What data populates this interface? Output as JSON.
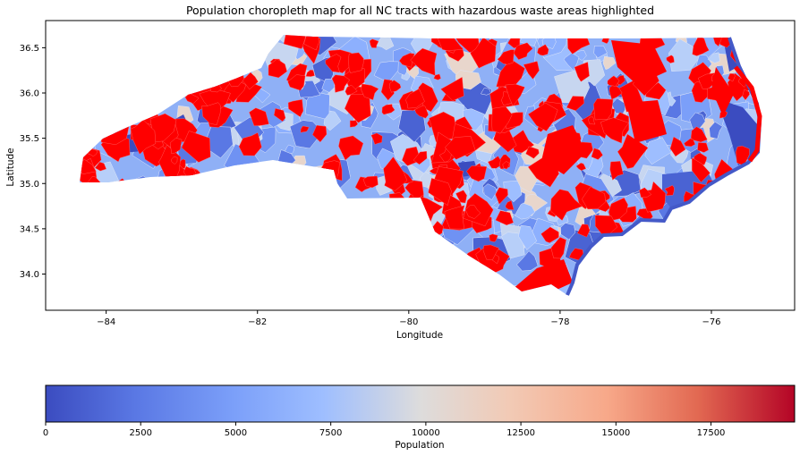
{
  "title": "Population choropleth map for all NC tracts with hazardous waste areas highlighted",
  "map": {
    "xlabel": "Longitude",
    "ylabel": "Latitude",
    "xlim": [
      -84.8,
      -74.9
    ],
    "ylim": [
      33.6,
      36.8
    ],
    "x_ticks": [
      "-84",
      "-82",
      "-80",
      "-78",
      "-76"
    ],
    "y_ticks": [
      "34.0",
      "34.5",
      "35.0",
      "35.5",
      "36.0",
      "36.5"
    ],
    "highlight_color": "#ff0000",
    "highlight_meaning": "hazardous waste areas"
  },
  "colorbar": {
    "label": "Population",
    "colormap": "coolwarm",
    "min": 0,
    "max": 19700,
    "ticks": [
      "0",
      "2500",
      "5000",
      "7500",
      "10000",
      "12500",
      "15000",
      "17500"
    ],
    "colors": {
      "low": "#3b4cc0",
      "mid": "#dddddd",
      "high": "#b40426"
    }
  }
}
